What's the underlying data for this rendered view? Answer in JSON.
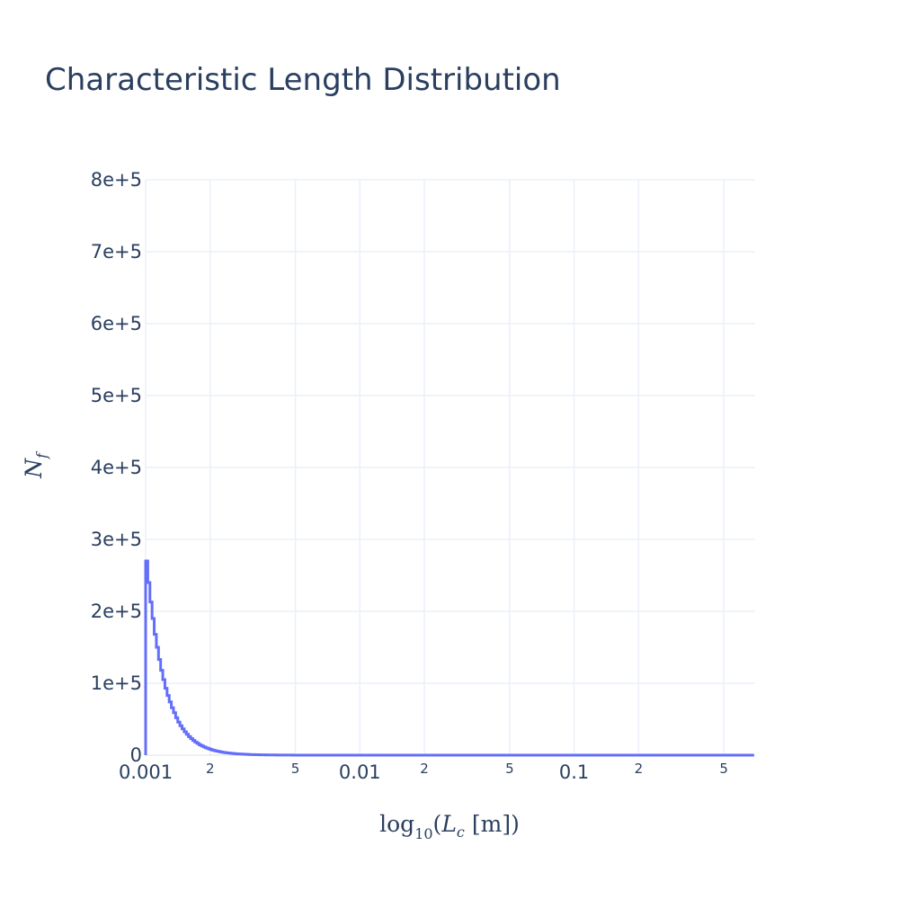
{
  "chart_data": {
    "type": "bar",
    "title": "Characteristic Length Distribution",
    "xlabel": {
      "prefix": "log",
      "subscript": "10",
      "open": "(",
      "var": "L",
      "var_subscript": "c",
      "unit": "[m]",
      "close": ")"
    },
    "ylabel": {
      "var": "N",
      "var_subscript": "f"
    },
    "x_scale": "log",
    "x_range": [
      0.001,
      0.7
    ],
    "ylim": [
      0,
      800000
    ],
    "grid": true,
    "legend": "none",
    "line_color": "#636efa",
    "y_ticks": [
      {
        "value": 0,
        "label": "0"
      },
      {
        "value": 100000,
        "label": "1e+5"
      },
      {
        "value": 200000,
        "label": "2e+5"
      },
      {
        "value": 300000,
        "label": "3e+5"
      },
      {
        "value": 400000,
        "label": "4e+5"
      },
      {
        "value": 500000,
        "label": "5e+5"
      },
      {
        "value": 600000,
        "label": "6e+5"
      },
      {
        "value": 700000,
        "label": "7e+5"
      },
      {
        "value": 800000,
        "label": "8e+5"
      }
    ],
    "x_ticks": [
      {
        "value": 0.001,
        "label": "0.001",
        "major": true
      },
      {
        "value": 0.002,
        "label": "2",
        "major": false
      },
      {
        "value": 0.005,
        "label": "5",
        "major": false
      },
      {
        "value": 0.01,
        "label": "0.01",
        "major": true
      },
      {
        "value": 0.02,
        "label": "2",
        "major": false
      },
      {
        "value": 0.05,
        "label": "5",
        "major": false
      },
      {
        "value": 0.1,
        "label": "0.1",
        "major": true
      },
      {
        "value": 0.2,
        "label": "2",
        "major": false
      },
      {
        "value": 0.5,
        "label": "5",
        "major": false
      }
    ],
    "bins": {
      "start": 0.001,
      "log_width": 0.01,
      "counts": [
        270000,
        240000,
        213000,
        190000,
        168000,
        150000,
        133000,
        118000,
        105000,
        93000,
        83000,
        74000,
        66000,
        59000,
        52000,
        46000,
        41000,
        36500,
        32500,
        29000,
        25800,
        23000,
        20500,
        18200,
        16200,
        14400,
        12800,
        11400,
        10100,
        9000,
        8000,
        7100,
        6300,
        5600,
        5000,
        4400,
        3900,
        3500,
        3100,
        2750,
        2450,
        2180,
        1940,
        1720,
        1530,
        1360,
        1210,
        1080,
        960,
        850,
        760,
        670,
        600,
        530,
        470,
        420,
        370,
        330,
        295,
        262,
        233,
        207,
        184,
        164,
        146,
        130,
        115,
        102,
        91,
        81,
        72,
        64,
        57,
        51,
        45,
        40,
        36,
        32,
        28,
        25,
        22,
        20,
        18,
        16,
        14,
        12,
        11,
        10,
        9,
        8,
        7,
        6,
        5,
        5,
        4,
        4,
        3,
        3,
        3,
        2,
        2,
        2,
        2,
        1,
        1,
        1,
        1,
        1,
        1,
        1,
        1,
        1,
        1,
        1,
        1,
        1,
        1,
        1,
        1,
        1,
        1,
        1,
        1,
        1,
        1,
        1,
        1,
        1,
        1,
        1,
        1,
        1,
        1,
        1,
        1,
        1,
        1,
        1,
        1,
        1,
        1,
        1,
        1,
        1,
        1,
        1,
        1,
        1,
        1,
        1,
        1,
        1,
        1,
        1,
        1,
        1,
        1,
        1,
        1,
        1,
        1,
        1,
        1,
        1,
        1,
        1,
        1,
        1,
        1,
        1,
        1,
        1,
        1,
        1,
        1,
        1,
        1,
        1,
        1,
        1,
        1,
        1,
        1,
        1,
        1,
        1,
        1,
        1,
        1,
        1,
        1,
        1,
        1,
        1,
        1,
        1,
        1,
        1,
        1,
        1,
        1,
        1,
        1,
        1,
        1,
        1,
        1,
        1,
        1,
        1,
        1,
        1,
        1,
        1,
        1,
        1,
        1,
        1,
        1,
        1,
        1,
        1,
        1,
        1,
        1,
        1,
        1,
        1,
        1,
        1,
        1,
        1,
        1,
        1,
        1,
        1,
        1,
        1,
        1,
        1,
        1,
        1,
        1,
        1,
        1,
        1,
        1,
        1,
        1,
        1,
        1,
        1,
        1,
        1,
        1,
        1,
        1,
        1,
        1,
        1,
        1,
        1,
        1,
        1,
        1,
        1,
        1,
        1,
        1,
        1,
        1,
        1,
        1,
        1,
        1,
        1,
        1,
        1,
        1,
        1,
        1,
        1,
        1,
        1
      ]
    }
  }
}
